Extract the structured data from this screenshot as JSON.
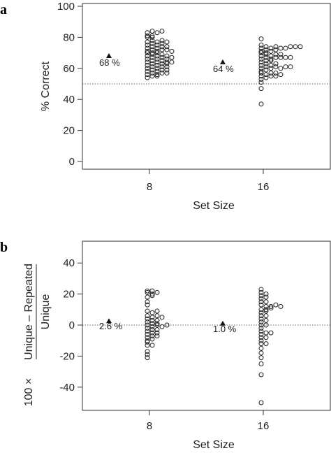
{
  "chart_data": [
    {
      "panel": "a",
      "type": "scatter",
      "ylabel": "% Correct",
      "xlabel": "Set Size",
      "ylim": [
        0,
        100
      ],
      "yticks": [
        0,
        20,
        40,
        60,
        80,
        100
      ],
      "categories": [
        "8",
        "16"
      ],
      "reference_line": 50,
      "annotations": [
        {
          "category": "8",
          "value": 68,
          "label": "68 %"
        },
        {
          "category": "16",
          "value": 64,
          "label": "64 %"
        }
      ],
      "series": [
        {
          "category": "8",
          "values": [
            54,
            55,
            56,
            57,
            58,
            59,
            60,
            61,
            62,
            63,
            64,
            65,
            66,
            67,
            68,
            69,
            70,
            71,
            72,
            73,
            74,
            75,
            76,
            77,
            78,
            80,
            81,
            83,
            84,
            55,
            56,
            57,
            58,
            59,
            60,
            61,
            62,
            63,
            64,
            65,
            66,
            67,
            68,
            69,
            70,
            71,
            72,
            73,
            74,
            75,
            76,
            77,
            78,
            80,
            81,
            83,
            84,
            57,
            59,
            61,
            63,
            64,
            66,
            68,
            70,
            72,
            74,
            77,
            64,
            67,
            71
          ]
        },
        {
          "category": "16",
          "values": [
            37,
            47,
            51,
            53,
            55,
            57,
            58,
            60,
            61,
            62,
            63,
            64,
            65,
            66,
            67,
            68,
            69,
            70,
            71,
            72,
            73,
            74,
            75,
            79,
            54,
            55,
            56,
            57,
            59,
            60,
            61,
            62,
            63,
            65,
            66,
            67,
            68,
            69,
            70,
            71,
            72,
            73,
            74,
            55,
            57,
            60,
            61,
            67,
            69,
            73,
            56,
            61,
            67,
            73,
            67,
            74,
            74,
            74
          ]
        }
      ]
    },
    {
      "panel": "b",
      "type": "scatter",
      "ylabel_prefix": "100 ×",
      "ylabel_numerator": "Unique – Repeated",
      "ylabel_denominator": "Unique",
      "xlabel": "Set Size",
      "ylim": [
        -50,
        50
      ],
      "yticks": [
        -40,
        -20,
        0,
        20,
        40
      ],
      "categories": [
        "8",
        "16"
      ],
      "reference_line": 0,
      "annotations": [
        {
          "category": "8",
          "value": 2.6,
          "label": "2.6 %"
        },
        {
          "category": "16",
          "value": 1.0,
          "label": "1.0 %"
        }
      ],
      "series": [
        {
          "category": "8",
          "values": [
            22,
            21,
            20,
            18,
            15,
            13,
            9,
            8,
            6,
            5,
            4,
            3,
            2,
            1,
            0,
            -1,
            -2,
            -3,
            -4,
            -5,
            -6,
            -7,
            -8,
            -9,
            -10,
            -11,
            -13,
            -17,
            -21,
            22,
            21,
            19,
            9,
            6,
            5,
            3,
            1,
            0,
            -1,
            -3,
            -5,
            -7,
            -13,
            -19,
            0
          ]
        },
        {
          "category": "16",
          "values": [
            23,
            21,
            19,
            17,
            15,
            13,
            12,
            10,
            8,
            6,
            4,
            2,
            0,
            -2,
            -4,
            -5,
            -6,
            -8,
            -10,
            -12,
            -15,
            -18,
            -21,
            -25,
            -32,
            -50,
            20,
            18,
            15,
            12,
            10,
            6,
            3,
            0,
            -5,
            -8,
            -12,
            13,
            11,
            9,
            12
          ]
        }
      ]
    }
  ]
}
